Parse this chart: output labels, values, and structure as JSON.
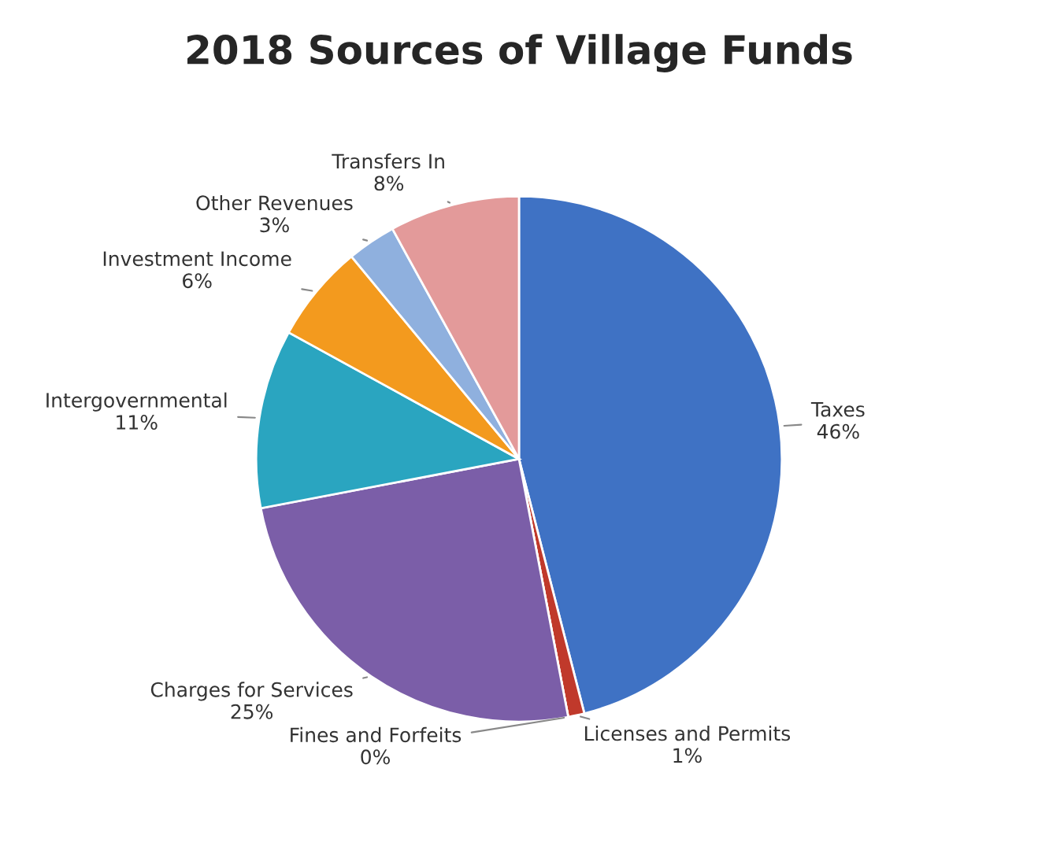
{
  "chart_data": {
    "type": "pie",
    "title": "2018 Sources of Village Funds",
    "categories": [
      "Taxes",
      "Licenses and Permits",
      "Fines and Forfeits",
      "Charges for Services",
      "Intergovernmental",
      "Investment Income",
      "Other Revenues",
      "Transfers In"
    ],
    "values": [
      46,
      1,
      0,
      25,
      11,
      6,
      3,
      8
    ],
    "value_labels": [
      "46%",
      "1%",
      "0%",
      "25%",
      "11%",
      "6%",
      "3%",
      "8%"
    ],
    "colors": [
      "#3f72c4",
      "#c0392b",
      "#8bb04a",
      "#7b5ea8",
      "#2aa5c0",
      "#f39a1e",
      "#8fb0de",
      "#e39a9a"
    ]
  }
}
